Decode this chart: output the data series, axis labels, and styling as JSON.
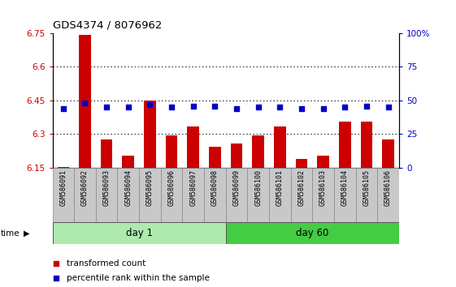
{
  "title": "GDS4374 / 8076962",
  "samples": [
    "GSM586091",
    "GSM586092",
    "GSM586093",
    "GSM586094",
    "GSM586095",
    "GSM586096",
    "GSM586097",
    "GSM586098",
    "GSM586099",
    "GSM586100",
    "GSM586101",
    "GSM586102",
    "GSM586103",
    "GSM586104",
    "GSM586105",
    "GSM586106"
  ],
  "transformed_count": [
    6.155,
    6.74,
    6.275,
    6.205,
    6.45,
    6.295,
    6.335,
    6.245,
    6.26,
    6.295,
    6.335,
    6.19,
    6.205,
    6.355,
    6.355,
    6.275
  ],
  "percentile_rank": [
    44,
    48,
    45,
    45,
    47,
    45,
    46,
    46,
    44,
    45,
    45,
    44,
    44,
    45,
    46,
    45
  ],
  "bar_color": "#cc0000",
  "dot_color": "#0000cc",
  "ylim_left": [
    6.15,
    6.75
  ],
  "ylim_right": [
    0,
    100
  ],
  "yticks_left": [
    6.15,
    6.3,
    6.45,
    6.6,
    6.75
  ],
  "yticks_right": [
    0,
    25,
    50,
    75,
    100
  ],
  "ytick_labels_left": [
    "6.15",
    "6.3",
    "6.45",
    "6.6",
    "6.75"
  ],
  "ytick_labels_right": [
    "0",
    "25",
    "50",
    "75",
    "100%"
  ],
  "day1_samples": 8,
  "day60_samples": 8,
  "day1_label": "day 1",
  "day60_label": "day 60",
  "day1_color": "#aeeaae",
  "day60_color": "#44cc44",
  "time_label": "time",
  "legend_bar_label": "transformed count",
  "legend_dot_label": "percentile rank within the sample",
  "sample_bg": "#c8c8c8"
}
